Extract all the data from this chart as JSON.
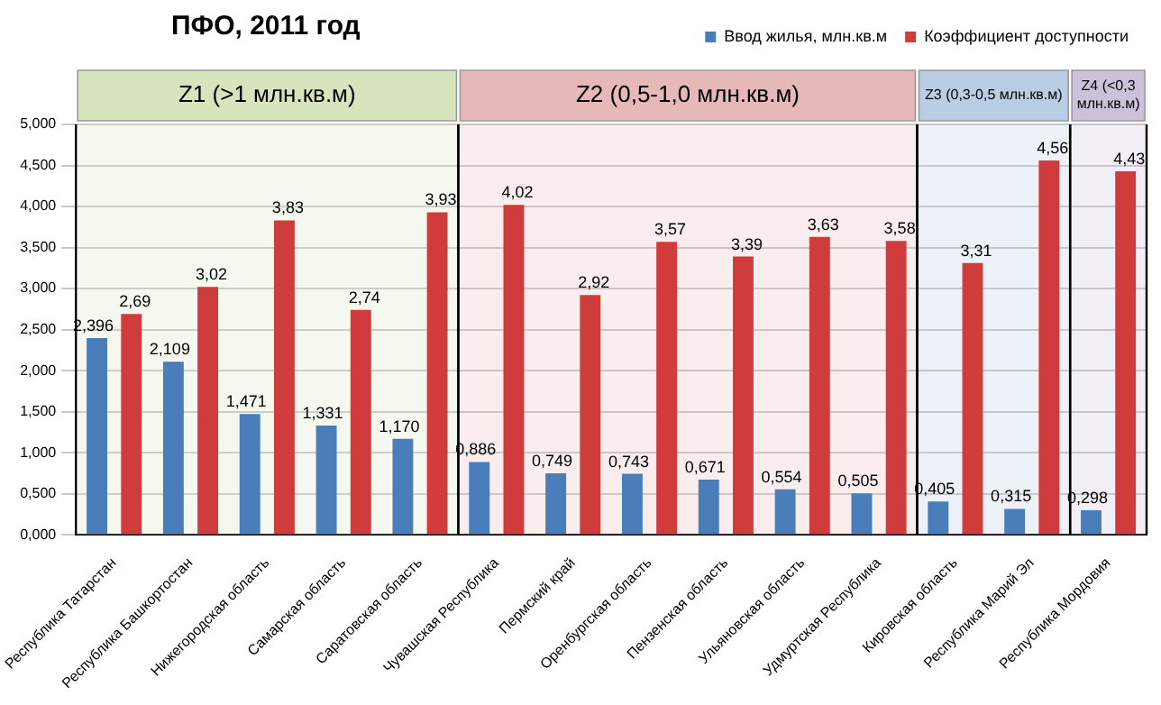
{
  "chart_data": {
    "type": "bar",
    "title": "ПФО, 2011 год",
    "categories": [
      "Республика Татарстан",
      "Республика Башкортостан",
      "Нижегородская область",
      "Самарская область",
      "Саратовская область",
      "Чувашская Республика",
      "Пермский край",
      "Оренбургская область",
      "Пензенская область",
      "Ульяновская область",
      "Удмуртская Республика",
      "Кировская область",
      "Республика Марий Эл",
      "Республика Мордовия"
    ],
    "series": [
      {
        "name": "Ввод жилья, млн.кв.м",
        "color": "#4a7ebb",
        "values": [
          2.396,
          2.109,
          1.471,
          1.331,
          1.17,
          0.886,
          0.749,
          0.743,
          0.671,
          0.554,
          0.505,
          0.405,
          0.315,
          0.298
        ],
        "value_labels": [
          "2,396",
          "2,109",
          "1,471",
          "1,331",
          "1,170",
          "0,886",
          "0,749",
          "0,743",
          "0,671",
          "0,554",
          "0,505",
          "0,405",
          "0,315",
          "0,298"
        ]
      },
      {
        "name": "Коэффициент доступности",
        "color": "#d03c3c",
        "values": [
          2.69,
          3.02,
          3.83,
          2.74,
          3.93,
          4.02,
          2.92,
          3.57,
          3.39,
          3.63,
          3.58,
          3.31,
          4.56,
          4.43
        ],
        "value_labels": [
          "2,69",
          "3,02",
          "3,83",
          "2,74",
          "3,93",
          "4,02",
          "2,92",
          "3,57",
          "3,39",
          "3,63",
          "3,58",
          "3,31",
          "4,56",
          "4,43"
        ]
      }
    ],
    "ylim": [
      0,
      5
    ],
    "yticks": [
      {
        "value": 0,
        "label": "0,000"
      },
      {
        "value": 0.5,
        "label": "0,500"
      },
      {
        "value": 1,
        "label": "1,000"
      },
      {
        "value": 1.5,
        "label": "1,500"
      },
      {
        "value": 2,
        "label": "2,000"
      },
      {
        "value": 2.5,
        "label": "2,500"
      },
      {
        "value": 3,
        "label": "3,000"
      },
      {
        "value": 3.5,
        "label": "3,500"
      },
      {
        "value": 4,
        "label": "4,000"
      },
      {
        "value": 4.5,
        "label": "4,500"
      },
      {
        "value": 5,
        "label": "5,000"
      }
    ],
    "grid": "y",
    "legend": "top right",
    "bands": [
      {
        "axis": "x",
        "from": "Республика Татарстан",
        "to": "Саратовская область",
        "label": "Z1 (>1 млн.кв.м)",
        "color": "#d7e4bd"
      },
      {
        "axis": "x",
        "from": "Чувашская Республика",
        "to": "Удмуртская Республика",
        "label": "Z2 (0,5-1,0 млн.кв.м)",
        "color": "#e6b9b8"
      },
      {
        "axis": "x",
        "from": "Кировская область",
        "to": "Республика Марий Эл",
        "label": "Z3 (0,3-0,5 млн.кв.м)",
        "color": "#b9cde5"
      },
      {
        "axis": "x",
        "from": "Республика Мордовия",
        "to": "Республика Мордовия",
        "label": "Z4 (<0,3 млн.кв.м)",
        "color": "#ccc1da"
      }
    ]
  }
}
